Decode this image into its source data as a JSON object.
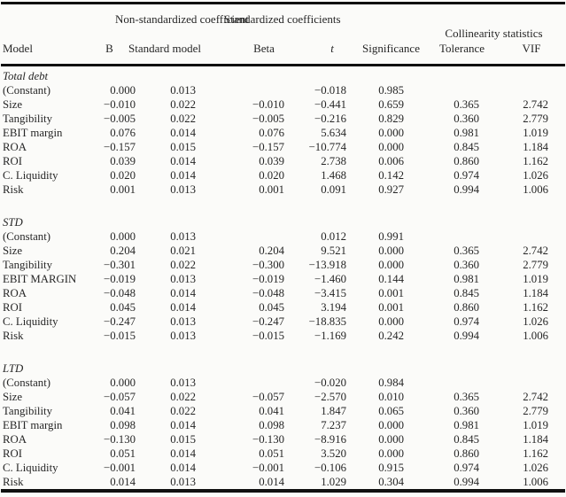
{
  "colors": {
    "background": "#fbfbf9",
    "text": "#262626",
    "rule": "#101010"
  },
  "table": {
    "group_headers": {
      "non_standardized": "Non-standardized coefficient",
      "standardized": "Standardized coefficients",
      "collinearity": "Collinearity statistics"
    },
    "col_headers": {
      "model": "Model",
      "b": "B",
      "standard_model": "Standard model",
      "beta": "Beta",
      "t": "t",
      "significance": "Significance",
      "tolerance": "Tolerance",
      "vif": "VIF"
    },
    "sections": [
      {
        "label": "Total debt",
        "rows": [
          {
            "model": "(Constant)",
            "b": "0.000",
            "std": "0.013",
            "beta": "",
            "t": "−0.018",
            "sig": "0.985",
            "tol": "",
            "vif": ""
          },
          {
            "model": "Size",
            "b": "−0.010",
            "std": "0.022",
            "beta": "−0.010",
            "t": "−0.441",
            "sig": "0.659",
            "tol": "0.365",
            "vif": "2.742"
          },
          {
            "model": "Tangibility",
            "b": "−0.005",
            "std": "0.022",
            "beta": "−0.005",
            "t": "−0.216",
            "sig": "0.829",
            "tol": "0.360",
            "vif": "2.779"
          },
          {
            "model": "EBIT margin",
            "b": "0.076",
            "std": "0.014",
            "beta": "0.076",
            "t": "5.634",
            "sig": "0.000",
            "tol": "0.981",
            "vif": "1.019"
          },
          {
            "model": "ROA",
            "b": "−0.157",
            "std": "0.015",
            "beta": "−0.157",
            "t": "−10.774",
            "sig": "0.000",
            "tol": "0.845",
            "vif": "1.184"
          },
          {
            "model": "ROI",
            "b": "0.039",
            "std": "0.014",
            "beta": "0.039",
            "t": "2.738",
            "sig": "0.006",
            "tol": "0.860",
            "vif": "1.162"
          },
          {
            "model": "C. Liquidity",
            "b": "0.020",
            "std": "0.014",
            "beta": "0.020",
            "t": "1.468",
            "sig": "0.142",
            "tol": "0.974",
            "vif": "1.026"
          },
          {
            "model": "Risk",
            "b": "0.001",
            "std": "0.013",
            "beta": "0.001",
            "t": "0.091",
            "sig": "0.927",
            "tol": "0.994",
            "vif": "1.006"
          }
        ]
      },
      {
        "label": "STD",
        "rows": [
          {
            "model": "(Constant)",
            "b": "0.000",
            "std": "0.013",
            "beta": "",
            "t": "0.012",
            "sig": "0.991",
            "tol": "",
            "vif": ""
          },
          {
            "model": "Size",
            "b": "0.204",
            "std": "0.021",
            "beta": "0.204",
            "t": "9.521",
            "sig": "0.000",
            "tol": "0.365",
            "vif": "2.742"
          },
          {
            "model": "Tangibility",
            "b": "−0.301",
            "std": "0.022",
            "beta": "−0.300",
            "t": "−13.918",
            "sig": "0.000",
            "tol": "0.360",
            "vif": "2.779"
          },
          {
            "model": "EBIT MARGIN",
            "b": "−0.019",
            "std": "0.013",
            "beta": "−0.019",
            "t": "−1.460",
            "sig": "0.144",
            "tol": "0.981",
            "vif": "1.019"
          },
          {
            "model": "ROA",
            "b": "−0.048",
            "std": "0.014",
            "beta": "−0.048",
            "t": "−3.415",
            "sig": "0.001",
            "tol": "0.845",
            "vif": "1.184"
          },
          {
            "model": "ROI",
            "b": "0.045",
            "std": "0.014",
            "beta": "0.045",
            "t": "3.194",
            "sig": "0.001",
            "tol": "0.860",
            "vif": "1.162"
          },
          {
            "model": "C. Liquidity",
            "b": "−0.247",
            "std": "0.013",
            "beta": "−0.247",
            "t": "−18.835",
            "sig": "0.000",
            "tol": "0.974",
            "vif": "1.026"
          },
          {
            "model": "Risk",
            "b": "−0.015",
            "std": "0.013",
            "beta": "−0.015",
            "t": "−1.169",
            "sig": "0.242",
            "tol": "0.994",
            "vif": "1.006"
          }
        ]
      },
      {
        "label": "LTD",
        "rows": [
          {
            "model": "(Constant)",
            "b": "0.000",
            "std": "0.013",
            "beta": "",
            "t": "−0.020",
            "sig": "0.984",
            "tol": "",
            "vif": ""
          },
          {
            "model": "Size",
            "b": "−0.057",
            "std": "0.022",
            "beta": "−0.057",
            "t": "−2.570",
            "sig": "0.010",
            "tol": "0.365",
            "vif": "2.742"
          },
          {
            "model": "Tangibility",
            "b": "0.041",
            "std": "0.022",
            "beta": "0.041",
            "t": "1.847",
            "sig": "0.065",
            "tol": "0.360",
            "vif": "2.779"
          },
          {
            "model": "EBIT margin",
            "b": "0.098",
            "std": "0.014",
            "beta": "0.098",
            "t": "7.237",
            "sig": "0.000",
            "tol": "0.981",
            "vif": "1.019"
          },
          {
            "model": "ROA",
            "b": "−0.130",
            "std": "0.015",
            "beta": "−0.130",
            "t": "−8.916",
            "sig": "0.000",
            "tol": "0.845",
            "vif": "1.184"
          },
          {
            "model": "ROI",
            "b": "0.051",
            "std": "0.014",
            "beta": "0.051",
            "t": "3.520",
            "sig": "0.000",
            "tol": "0.860",
            "vif": "1.162"
          },
          {
            "model": "C. Liquidity",
            "b": "−0.001",
            "std": "0.014",
            "beta": "−0.001",
            "t": "−0.106",
            "sig": "0.915",
            "tol": "0.974",
            "vif": "1.026"
          },
          {
            "model": "Risk",
            "b": "0.014",
            "std": "0.013",
            "beta": "0.014",
            "t": "1.029",
            "sig": "0.304",
            "tol": "0.994",
            "vif": "1.006"
          }
        ]
      }
    ]
  }
}
